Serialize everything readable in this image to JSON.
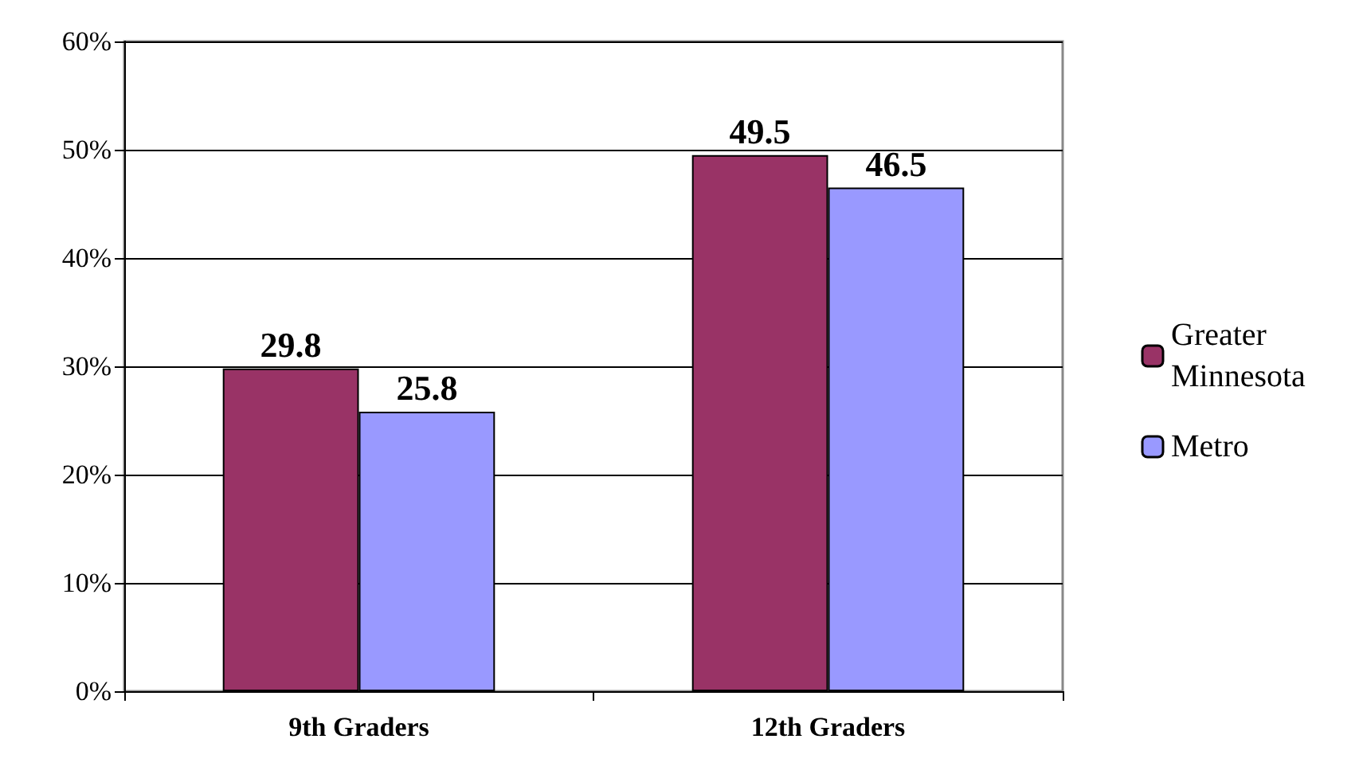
{
  "chart_data": {
    "type": "bar",
    "categories": [
      "9th Graders",
      "12th Graders"
    ],
    "series": [
      {
        "name": "Greater Minnesota",
        "color": "#993366",
        "values": [
          29.8,
          49.5
        ]
      },
      {
        "name": "Metro",
        "color": "#9999ff",
        "values": [
          25.8,
          46.5
        ]
      }
    ],
    "ylim": [
      0,
      60
    ],
    "yticks": [
      {
        "value": 0,
        "label": "0%"
      },
      {
        "value": 10,
        "label": "10%"
      },
      {
        "value": 20,
        "label": "20%"
      },
      {
        "value": 30,
        "label": "30%"
      },
      {
        "value": 40,
        "label": "40%"
      },
      {
        "value": 50,
        "label": "50%"
      },
      {
        "value": 60,
        "label": "60%"
      }
    ],
    "grid": "y",
    "legend": "right",
    "data_labels": true
  }
}
